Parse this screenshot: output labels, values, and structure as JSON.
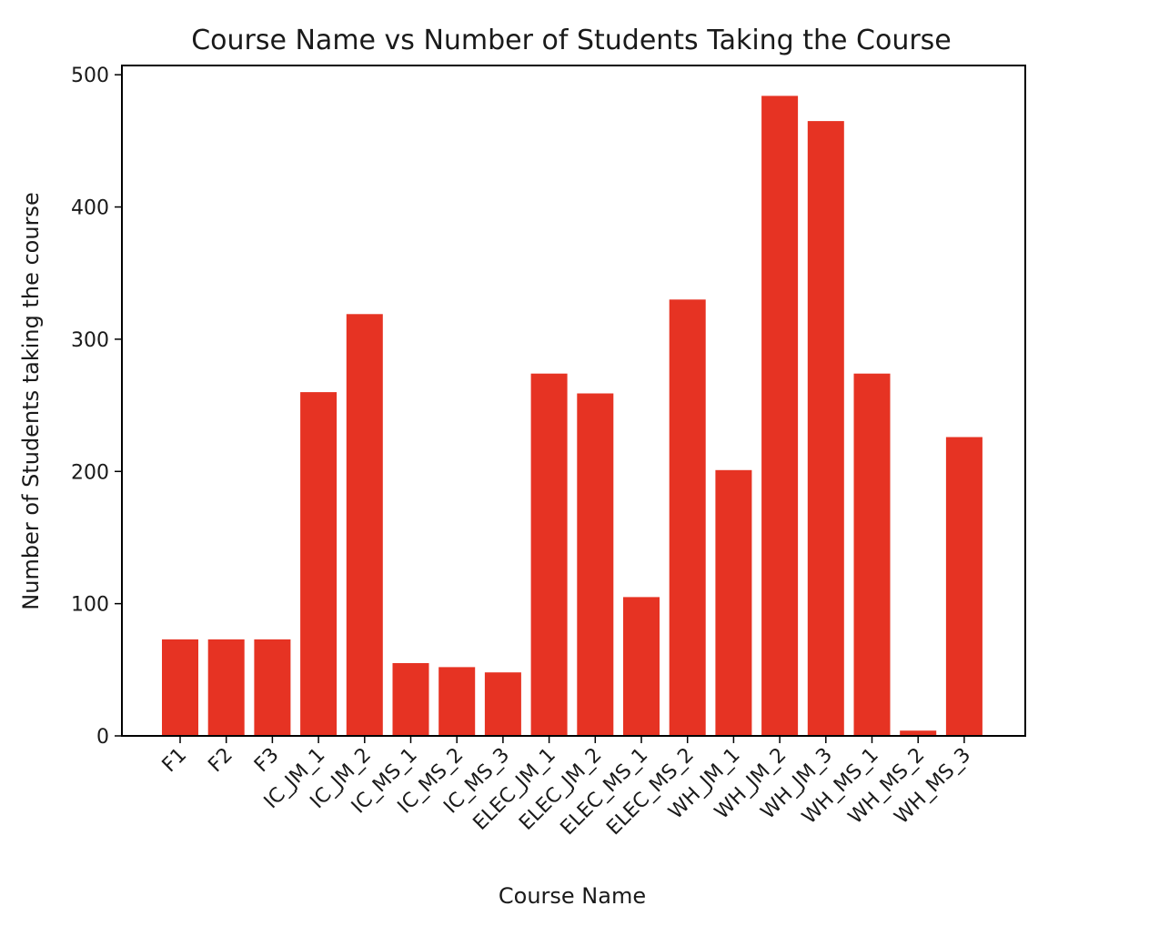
{
  "chart_data": {
    "type": "bar",
    "title": "Course Name vs Number of Students Taking the Course",
    "xlabel": "Course Name",
    "ylabel": "Number of Students taking the course",
    "categories": [
      "F1",
      "F2",
      "F3",
      "IC_JM_1",
      "IC_JM_2",
      "IC_MS_1",
      "IC_MS_2",
      "IC_MS_3",
      "ELEC_JM_1",
      "ELEC_JM_2",
      "ELEC_MS_1",
      "ELEC_MS_2",
      "WH_JM_1",
      "WH_JM_2",
      "WH_JM_3",
      "WH_MS_1",
      "WH_MS_2",
      "WH_MS_3"
    ],
    "values": [
      73,
      73,
      73,
      260,
      319,
      55,
      52,
      48,
      274,
      259,
      105,
      330,
      201,
      484,
      465,
      274,
      4,
      226
    ],
    "ylim": [
      0,
      507
    ],
    "yticks": [
      0,
      100,
      200,
      300,
      400,
      500
    ],
    "bar_color": "#e63323",
    "grid": false,
    "legend": false
  }
}
